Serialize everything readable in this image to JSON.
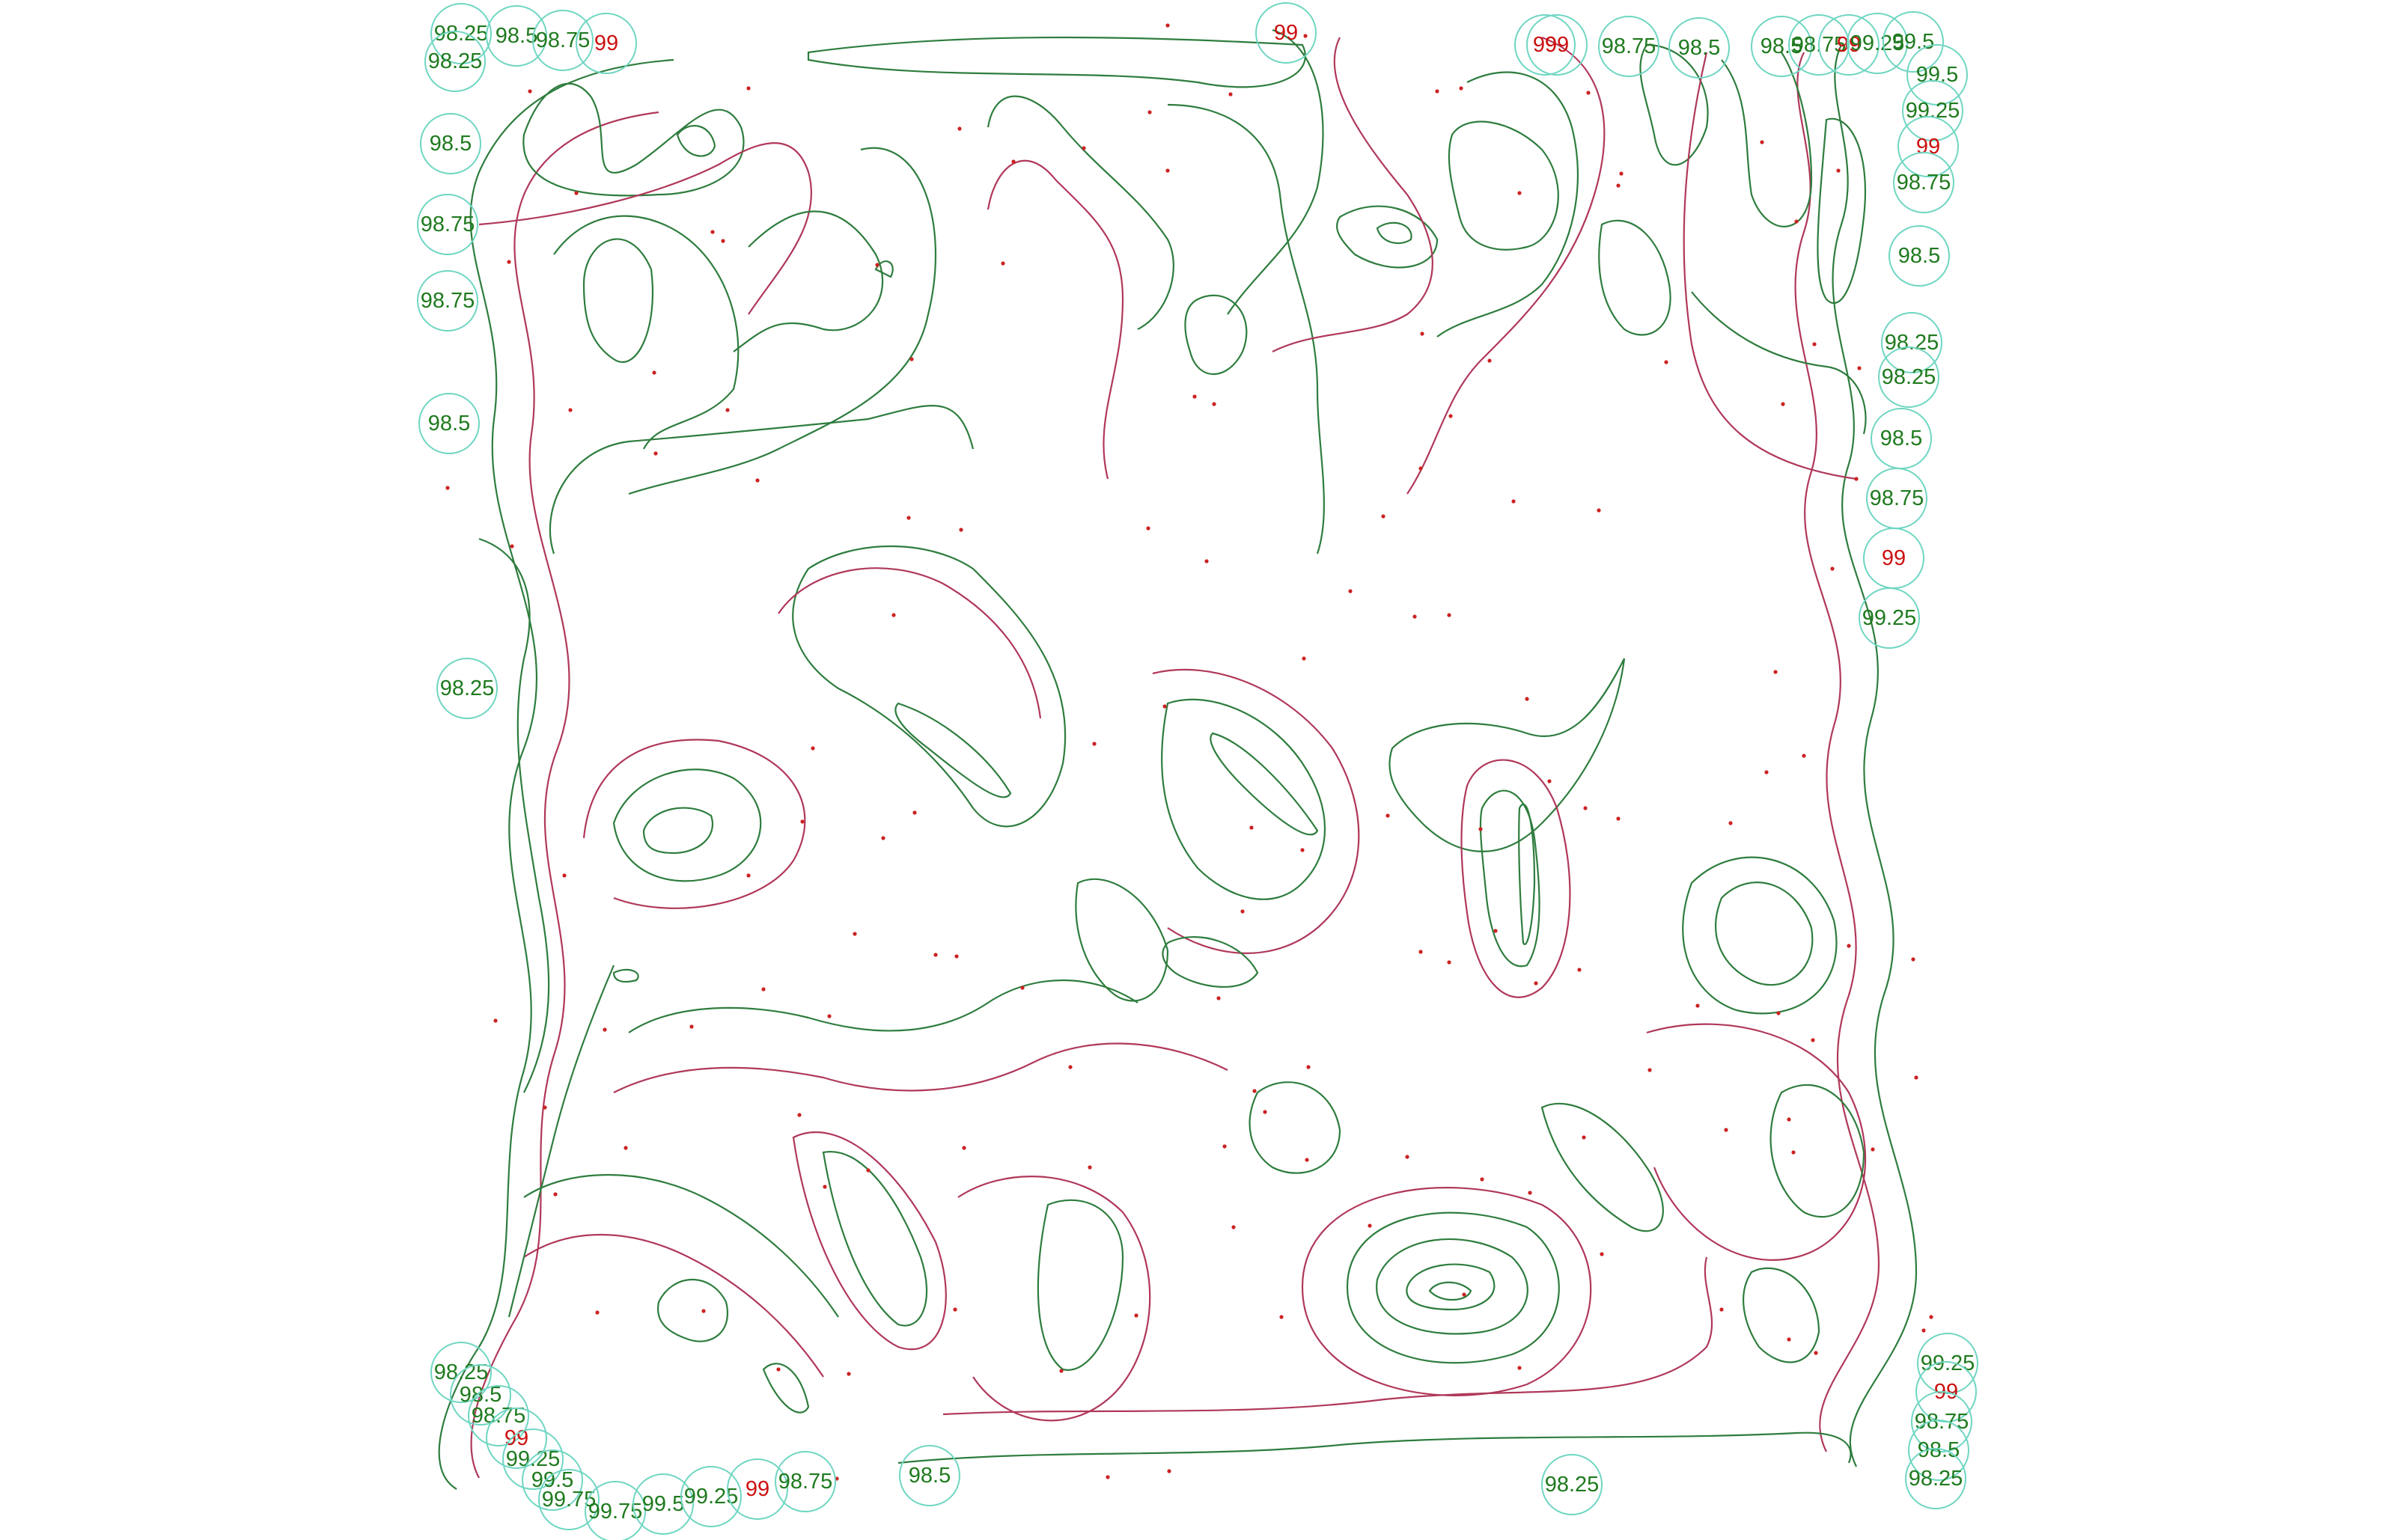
{
  "colors": {
    "contour_green": "#2e7d3e",
    "contour_red": "#b0385a",
    "label_green": "#1f7a1f",
    "label_red": "#cc1111",
    "marker_ring": "#6fd6c2",
    "sample_dot": "#cc2222"
  },
  "labels": [
    {
      "text": "98.25",
      "kind": "green"
    },
    {
      "text": "98.5",
      "kind": "green"
    },
    {
      "text": "98.75",
      "kind": "green"
    },
    {
      "text": "99",
      "kind": "red"
    },
    {
      "text": "98.25",
      "kind": "green"
    },
    {
      "text": "98.5",
      "kind": "green"
    },
    {
      "text": "98.75",
      "kind": "green"
    },
    {
      "text": "98.75",
      "kind": "green"
    },
    {
      "text": "98.5",
      "kind": "green"
    },
    {
      "text": "98.25",
      "kind": "green"
    },
    {
      "text": "99",
      "kind": "red"
    },
    {
      "text": "99",
      "kind": "red"
    },
    {
      "text": "99",
      "kind": "red"
    },
    {
      "text": "98.75",
      "kind": "green"
    },
    {
      "text": "98.5",
      "kind": "green"
    },
    {
      "text": "98.5",
      "kind": "green"
    },
    {
      "text": "98.75",
      "kind": "green"
    },
    {
      "text": "99",
      "kind": "red"
    },
    {
      "text": "99.25",
      "kind": "green"
    },
    {
      "text": "99.5",
      "kind": "green"
    },
    {
      "text": "99.5",
      "kind": "green"
    },
    {
      "text": "99.25",
      "kind": "green"
    },
    {
      "text": "99",
      "kind": "red"
    },
    {
      "text": "98.75",
      "kind": "green"
    },
    {
      "text": "98.5",
      "kind": "green"
    },
    {
      "text": "98.25",
      "kind": "green"
    },
    {
      "text": "98.25",
      "kind": "green"
    },
    {
      "text": "98.5",
      "kind": "green"
    },
    {
      "text": "98.75",
      "kind": "green"
    },
    {
      "text": "99",
      "kind": "red"
    },
    {
      "text": "99.25",
      "kind": "green"
    },
    {
      "text": "98.25",
      "kind": "green"
    },
    {
      "text": "98.5",
      "kind": "green"
    },
    {
      "text": "98.75",
      "kind": "green"
    },
    {
      "text": "99",
      "kind": "red"
    },
    {
      "text": "99.25",
      "kind": "green"
    },
    {
      "text": "99.5",
      "kind": "green"
    },
    {
      "text": "99.75",
      "kind": "green"
    },
    {
      "text": "99.75",
      "kind": "green"
    },
    {
      "text": "99.5",
      "kind": "green"
    },
    {
      "text": "99.25",
      "kind": "green"
    },
    {
      "text": "99",
      "kind": "red"
    },
    {
      "text": "98.75",
      "kind": "green"
    },
    {
      "text": "98.5",
      "kind": "green"
    },
    {
      "text": "98.25",
      "kind": "green"
    },
    {
      "text": "99.25",
      "kind": "green"
    },
    {
      "text": "99",
      "kind": "red"
    },
    {
      "text": "98.75",
      "kind": "green"
    },
    {
      "text": "98.5",
      "kind": "green"
    },
    {
      "text": "98.25",
      "kind": "green"
    }
  ]
}
